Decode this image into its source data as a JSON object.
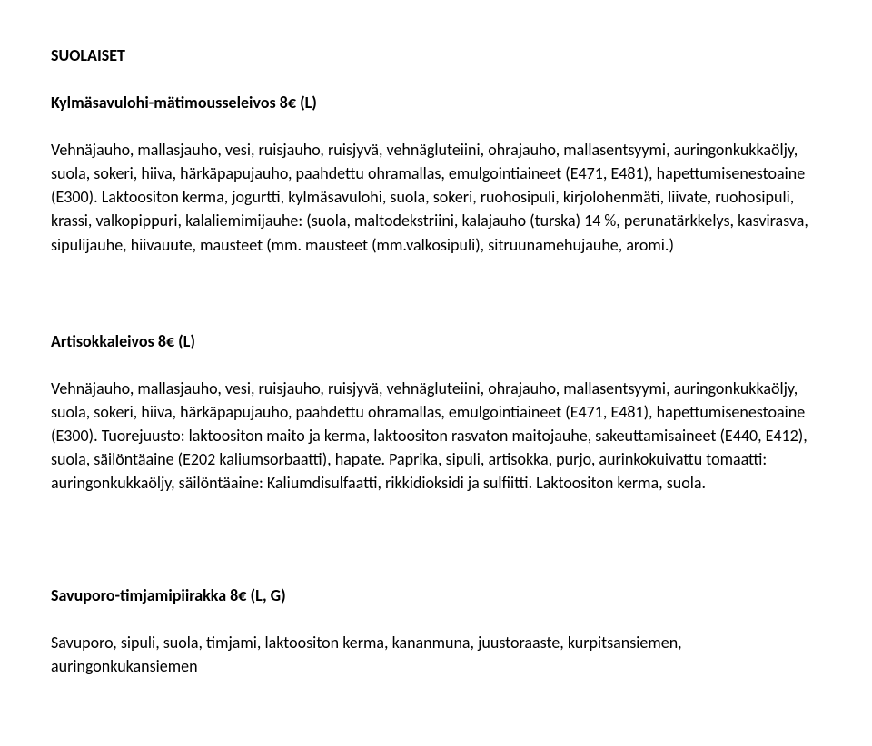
{
  "doc": {
    "sectionTitle": "SUOLAISET",
    "item1": {
      "title": "Kylmäsavulohi-mätimousseleivos 8€ (L)",
      "body": "Vehnäjauho, mallasjauho, vesi, ruisjauho, ruisjyvä,  vehnägluteiini, ohrajauho, mallasentsyymi, auringonkukkaöljy, suola, sokeri, hiiva, härkäpapujauho, paahdettu ohramallas, emulgointiaineet (E471, E481), hapettumisenestoaine (E300). Laktoositon kerma, jogurtti, kylmäsavulohi, suola, sokeri, ruohosipuli, kirjolohenmäti, liivate, ruohosipuli, krassi, valkopippuri, kalaliemimijauhe: (suola, maltodekstriini, kalajauho (turska) 14 %, perunatärkkelys, kasvirasva, sipulijauhe, hiivauute, mausteet (mm. mausteet (mm.valkosipuli), sitruunamehujauhe, aromi.)"
    },
    "item2": {
      "title": "Artisokkaleivos 8€ (L)",
      "body": "Vehnäjauho, mallasjauho, vesi, ruisjauho, ruisjyvä,  vehnägluteiini, ohrajauho, mallasentsyymi, auringonkukkaöljy, suola, sokeri, hiiva, härkäpapujauho, paahdettu ohramallas, emulgointiaineet (E471, E481), hapettumisenestoaine (E300). Tuorejuusto: laktoositon maito ja kerma, laktoositon rasvaton maitojauhe, sakeuttamisaineet (E440, E412), suola, säilöntäaine (E202 kaliumsorbaatti), hapate. Paprika, sipuli, artisokka, purjo, aurinkokuivattu tomaatti: auringonkukkaöljy, säilöntäaine: Kaliumdisulfaatti, rikkidioksidi ja sulfiitti. Laktoositon kerma, suola."
    },
    "item3": {
      "title": "Savuporo-timjamipiirakka 8€ (L, G)",
      "body": "Savuporo, sipuli, suola, timjami, laktoositon kerma, kananmuna, juustoraaste, kurpitsansiemen, auringonkukansiemen"
    }
  }
}
